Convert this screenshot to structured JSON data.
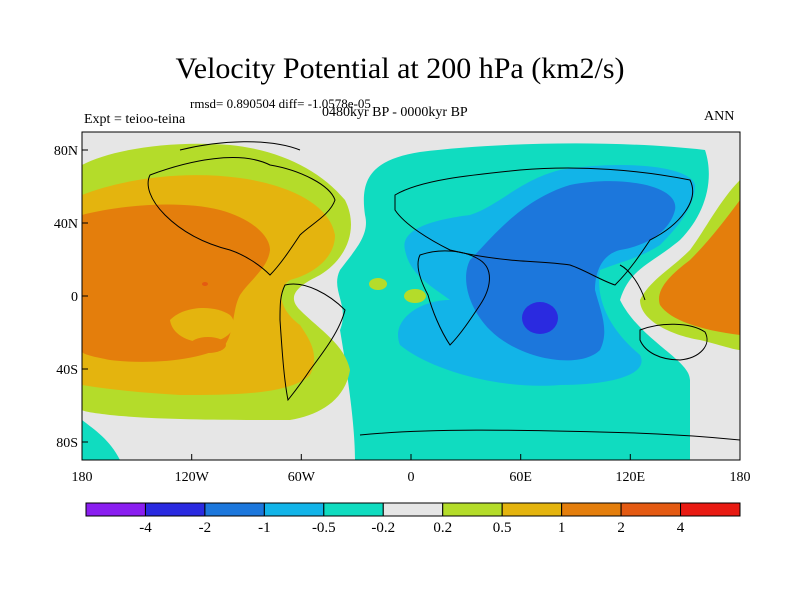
{
  "title": "Velocity Potential at 200 hPa (km2/s)",
  "stats_line": "rmsd= 0.890504 diff= -1.0578e-05",
  "period": "0480kyr BP - 0000kyr BP",
  "experiment": "Expt = teioo-teina",
  "season": "ANN",
  "lat_ticks": [
    "80N",
    "40N",
    "0",
    "40S",
    "80S"
  ],
  "lon_ticks": [
    "180",
    "120W",
    "60W",
    "0",
    "60E",
    "120E",
    "180"
  ],
  "colorbar": {
    "labels": [
      "-4",
      "-2",
      "-1",
      "-0.5",
      "-0.2",
      "0.2",
      "0.5",
      "1",
      "2",
      "4"
    ],
    "colors": [
      "#8a1ef0",
      "#2a2ae0",
      "#1c77dc",
      "#12b4e8",
      "#10dcc0",
      "#e6e6e6",
      "#b4dc2a",
      "#e4b40e",
      "#e47e0c",
      "#e45a12",
      "#e81a12"
    ]
  }
}
